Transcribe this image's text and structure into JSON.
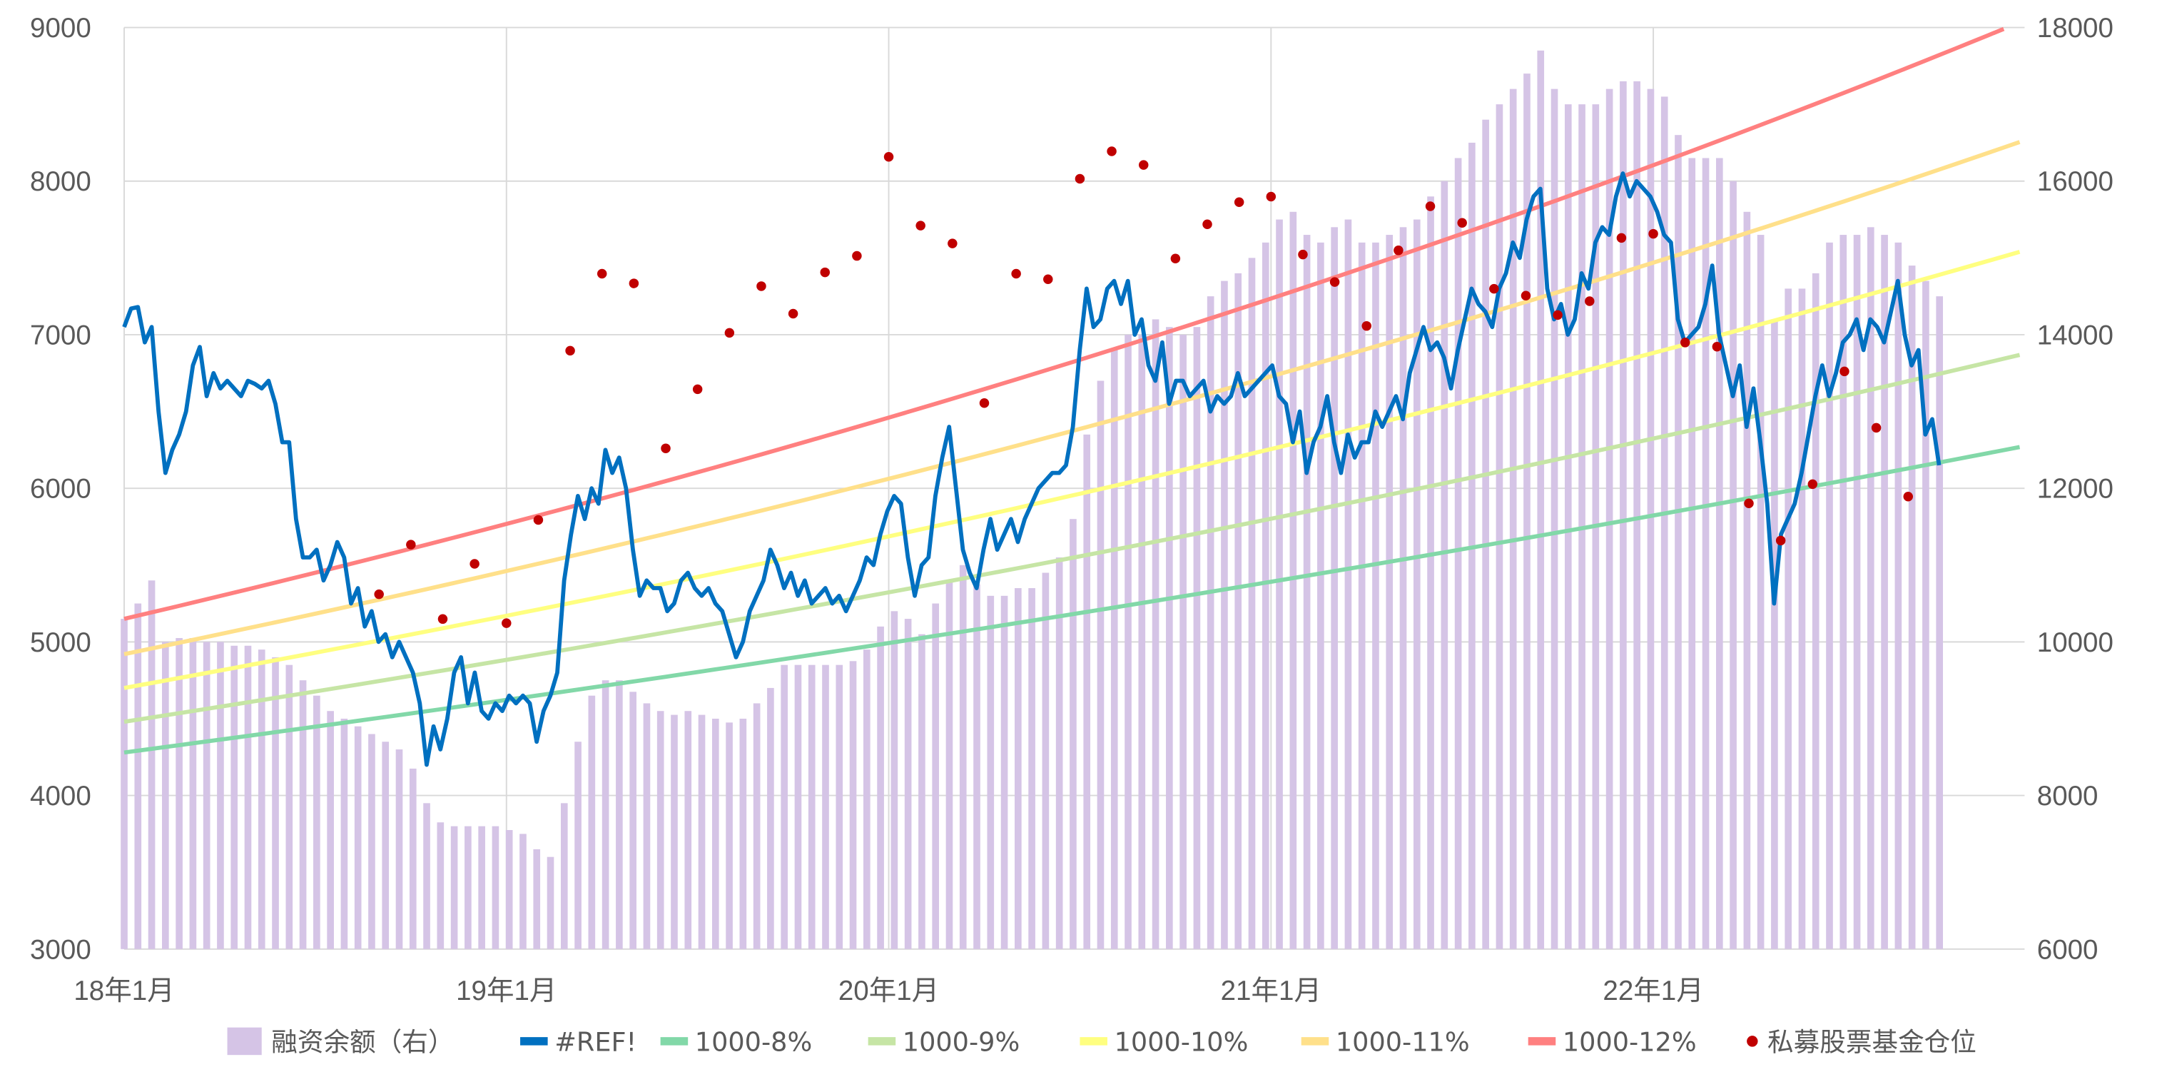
{
  "chart_data": {
    "type": "combo",
    "title": "",
    "x_axis": {
      "start": "2018-01",
      "tick_labels": [
        "18年1月",
        "19年1月",
        "20年1月",
        "21年1月",
        "22年1月"
      ],
      "tick_months": [
        0,
        12,
        24,
        36,
        48
      ],
      "range_months": [
        0,
        59.6
      ]
    },
    "y_left": {
      "range": [
        3000,
        9000
      ],
      "ticks": [
        3000,
        4000,
        5000,
        6000,
        7000,
        8000,
        9000
      ],
      "tick_labels": [
        "3000",
        "4000",
        "5000",
        "6000",
        "7000",
        "8000",
        "9000"
      ]
    },
    "y_right": {
      "range": [
        6000,
        18000
      ],
      "ticks": [
        6000,
        8000,
        10000,
        12000,
        14000,
        16000,
        18000
      ],
      "tick_labels": [
        "6000",
        "8000",
        "10000",
        "12000",
        "14000",
        "16000",
        "18000"
      ]
    },
    "grid": true,
    "legend_position": "bottom",
    "series": [
      {
        "name": "融资余额（右）",
        "type": "bar",
        "axis": "right",
        "color": "#D5C4E6",
        "start_month": 0,
        "step_months": 0.4317,
        "values": [
          10300,
          10500,
          10800,
          10000,
          10050,
          10050,
          10000,
          10000,
          9950,
          9950,
          9900,
          9800,
          9700,
          9500,
          9300,
          9100,
          9000,
          8900,
          8800,
          8700,
          8600,
          8350,
          7900,
          7650,
          7600,
          7600,
          7600,
          7600,
          7550,
          7500,
          7300,
          7200,
          7900,
          8700,
          9300,
          9500,
          9500,
          9350,
          9200,
          9100,
          9050,
          9100,
          9050,
          9000,
          8950,
          9000,
          9200,
          9400,
          9700,
          9700,
          9700,
          9700,
          9700,
          9750,
          9900,
          10200,
          10400,
          10300,
          10100,
          10500,
          10800,
          11000,
          10750,
          10600,
          10600,
          10700,
          10700,
          10900,
          11100,
          11600,
          12700,
          13400,
          13800,
          14000,
          14000,
          14200,
          14100,
          14000,
          14100,
          14500,
          14700,
          14800,
          15000,
          15200,
          15500,
          15600,
          15300,
          15200,
          15400,
          15500,
          15200,
          15200,
          15300,
          15400,
          15500,
          15800,
          16000,
          16300,
          16500,
          16800,
          17000,
          17200,
          17400,
          17700,
          17200,
          17000,
          17000,
          17000,
          17200,
          17300,
          17300,
          17200,
          17100,
          16600,
          16300,
          16300,
          16300,
          16000,
          15600,
          15300,
          14200,
          14600,
          14600,
          14800,
          15200,
          15300,
          15300,
          15400,
          15300,
          15200,
          14900,
          14700,
          14500
        ]
      },
      {
        "name": "#REF!",
        "type": "line",
        "axis": "left",
        "color": "#0070C0",
        "start_month": 0,
        "step_months": 0.2158,
        "values": [
          7050,
          7170,
          7180,
          6950,
          7050,
          6500,
          6100,
          6250,
          6350,
          6500,
          6800,
          6920,
          6600,
          6750,
          6650,
          6700,
          6650,
          6600,
          6700,
          6680,
          6650,
          6700,
          6550,
          6300,
          6300,
          5800,
          5550,
          5550,
          5600,
          5400,
          5500,
          5650,
          5550,
          5250,
          5350,
          5100,
          5200,
          5000,
          5050,
          4900,
          5000,
          4900,
          4800,
          4600,
          4200,
          4450,
          4300,
          4500,
          4800,
          4900,
          4600,
          4800,
          4550,
          4500,
          4600,
          4550,
          4650,
          4600,
          4650,
          4600,
          4350,
          4550,
          4650,
          4800,
          5400,
          5700,
          5950,
          5800,
          6000,
          5900,
          6250,
          6100,
          6200,
          6000,
          5600,
          5300,
          5400,
          5350,
          5350,
          5200,
          5250,
          5400,
          5450,
          5350,
          5300,
          5350,
          5250,
          5200,
          5050,
          4900,
          5000,
          5200,
          5300,
          5400,
          5600,
          5500,
          5350,
          5450,
          5300,
          5400,
          5250,
          5300,
          5350,
          5250,
          5300,
          5200,
          5300,
          5400,
          5550,
          5500,
          5700,
          5850,
          5950,
          5900,
          5550,
          5300,
          5500,
          5550,
          5950,
          6200,
          6400,
          6000,
          5600,
          5450,
          5350,
          5600,
          5800,
          5600,
          5700,
          5800,
          5650,
          5800,
          5900,
          6000,
          6050,
          6100,
          6100,
          6150,
          6400,
          6900,
          7300,
          7050,
          7100,
          7300,
          7350,
          7200,
          7350,
          7000,
          7100,
          6800,
          6700,
          6950,
          6550,
          6700,
          6700,
          6600,
          6650,
          6700,
          6500,
          6600,
          6550,
          6600,
          6750,
          6600,
          6650,
          6700,
          6750,
          6800,
          6600,
          6550,
          6300,
          6500,
          6100,
          6300,
          6400,
          6600,
          6300,
          6100,
          6350,
          6200,
          6300,
          6300,
          6500,
          6400,
          6500,
          6600,
          6450,
          6750,
          6900,
          7050,
          6900,
          6950,
          6850,
          6650,
          6900,
          7100,
          7300,
          7200,
          7150,
          7050,
          7300,
          7400,
          7600,
          7500,
          7750,
          7900,
          7950,
          7300,
          7100,
          7200,
          7000,
          7100,
          7400,
          7300,
          7600,
          7700,
          7650,
          7900,
          8050,
          7900,
          8000,
          7950,
          7900,
          7800,
          7650,
          7600,
          7100,
          6950,
          7000,
          7050,
          7200,
          7450,
          7000,
          6800,
          6600,
          6800,
          6400,
          6650,
          6300,
          5900,
          5250,
          5700,
          5800,
          5900,
          6100,
          6350,
          6600,
          6800,
          6600,
          6750,
          6950,
          7000,
          7100,
          6900,
          7100,
          7050,
          6950,
          7150,
          7350,
          7000,
          6800,
          6900,
          6350,
          6450,
          6150
        ]
      },
      {
        "name": "1000-8%",
        "type": "trend",
        "axis": "left",
        "color": "#82D8A8",
        "start_value": 4280,
        "annual_rate": 0.08
      },
      {
        "name": "1000-9%",
        "type": "trend",
        "axis": "left",
        "color": "#C6E5A5",
        "start_value": 4480,
        "annual_rate": 0.09
      },
      {
        "name": "1000-10%",
        "type": "trend",
        "axis": "left",
        "color": "#FFFF80",
        "start_value": 4700,
        "annual_rate": 0.1
      },
      {
        "name": "1000-11%",
        "type": "trend",
        "axis": "left",
        "color": "#FFE08A",
        "start_value": 4920,
        "annual_rate": 0.11
      },
      {
        "name": "1000-12%",
        "type": "trend",
        "axis": "left",
        "color": "#FF8080",
        "start_value": 5150,
        "annual_rate": 0.12
      },
      {
        "name": "私募股票基金仓位",
        "type": "scatter",
        "axis": "left",
        "color": "#C00000",
        "start_month": 8,
        "step_months": 1,
        "values": [
          5310,
          5633,
          5149,
          5508,
          5122,
          5794,
          6896,
          7397,
          7334,
          6260,
          6645,
          7012,
          7316,
          7137,
          7406,
          7513,
          8158,
          7710,
          7594,
          6555,
          7397,
          7361,
          8015,
          8194,
          8105,
          7496,
          7719,
          7863,
          7899,
          7522,
          7343,
          7057,
          7549,
          7836,
          7728,
          7299,
          7254,
          7128,
          7218,
          7630,
          7657,
          6949,
          6922,
          5902,
          5660,
          6027,
          6761,
          6394,
          5946
        ]
      }
    ]
  }
}
